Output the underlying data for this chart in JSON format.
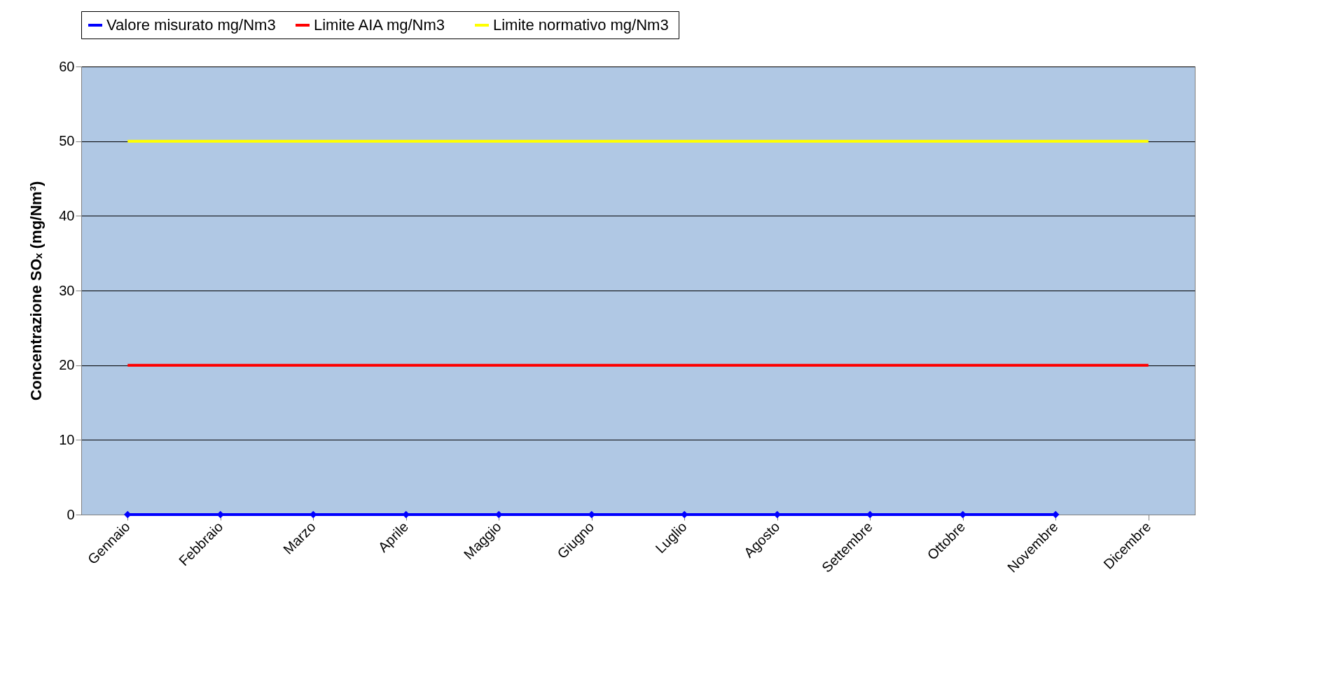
{
  "chart_data": {
    "type": "line",
    "ylabel": "Concentrazione SOₓ (mg/Nm³)",
    "categories": [
      "Gennaio",
      "Febbraio",
      "Marzo",
      "Aprile",
      "Maggio",
      "Giugno",
      "Luglio",
      "Agosto",
      "Settembre",
      "Ottobre",
      "Novembre",
      "Dicembre"
    ],
    "series": [
      {
        "name": "Valore misurato mg/Nm3",
        "color": "#0000ff",
        "marker": "diamond",
        "values": [
          0,
          0,
          0,
          0,
          0,
          0,
          0,
          0,
          0,
          0,
          0,
          null
        ]
      },
      {
        "name": "Limite AIA   mg/Nm3",
        "color": "#ff0000",
        "marker": "none",
        "values": [
          20,
          20,
          20,
          20,
          20,
          20,
          20,
          20,
          20,
          20,
          20,
          20
        ]
      },
      {
        "name": "Limite normativo  mg/Nm3",
        "color": "#ffff00",
        "marker": "none",
        "values": [
          50,
          50,
          50,
          50,
          50,
          50,
          50,
          50,
          50,
          50,
          50,
          50
        ]
      }
    ],
    "ylim": [
      0,
      60
    ],
    "yticks": [
      0,
      10,
      20,
      30,
      40,
      50,
      60
    ],
    "grid": "y",
    "legend": "top"
  }
}
